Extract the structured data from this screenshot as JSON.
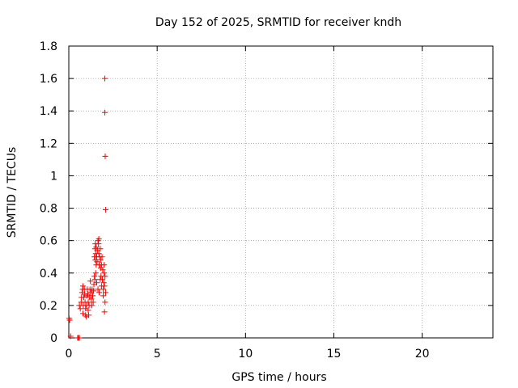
{
  "chart_data": {
    "type": "scatter",
    "title": "Day 152 of 2025, SRMTID for receiver kndh",
    "xlabel": "GPS time / hours",
    "ylabel": "SRMTID / TECUs",
    "xlim": [
      0,
      24
    ],
    "ylim": [
      0,
      1.8
    ],
    "x_ticks": [
      0,
      5,
      10,
      15,
      20
    ],
    "y_ticks": [
      0,
      0.2,
      0.4,
      0.6,
      0.8,
      1,
      1.2,
      1.4,
      1.6,
      1.8
    ],
    "x_tick_labels": [
      "0",
      "5",
      "10",
      "15",
      "20"
    ],
    "y_tick_labels": [
      "0",
      "0.2",
      "0.4",
      "0.6",
      "0.8",
      "1",
      "1.2",
      "1.4",
      "1.6",
      "1.8"
    ],
    "grid": true,
    "marker": "+",
    "color": "#ff0000",
    "series": [
      {
        "name": "SRMTID",
        "points": [
          [
            0.02,
            0.12
          ],
          [
            0.05,
            0.11
          ],
          [
            0.1,
            0.01
          ],
          [
            0.5,
            0.0
          ],
          [
            0.55,
            0.0
          ],
          [
            0.6,
            0.0
          ],
          [
            0.6,
            0.2
          ],
          [
            0.65,
            0.18
          ],
          [
            0.7,
            0.22
          ],
          [
            0.72,
            0.25
          ],
          [
            0.75,
            0.28
          ],
          [
            0.78,
            0.3
          ],
          [
            0.8,
            0.32
          ],
          [
            0.8,
            0.15
          ],
          [
            0.82,
            0.2
          ],
          [
            0.85,
            0.25
          ],
          [
            0.88,
            0.3
          ],
          [
            0.9,
            0.27
          ],
          [
            0.92,
            0.22
          ],
          [
            0.95,
            0.18
          ],
          [
            0.95,
            0.14
          ],
          [
            1.0,
            0.13
          ],
          [
            1.0,
            0.2
          ],
          [
            1.02,
            0.26
          ],
          [
            1.05,
            0.3
          ],
          [
            1.08,
            0.27
          ],
          [
            1.1,
            0.22
          ],
          [
            1.1,
            0.17
          ],
          [
            1.12,
            0.14
          ],
          [
            1.15,
            0.2
          ],
          [
            1.18,
            0.25
          ],
          [
            1.2,
            0.3
          ],
          [
            1.22,
            0.35
          ],
          [
            1.25,
            0.28
          ],
          [
            1.28,
            0.24
          ],
          [
            1.3,
            0.2
          ],
          [
            1.32,
            0.3
          ],
          [
            1.35,
            0.26
          ],
          [
            1.38,
            0.22
          ],
          [
            1.4,
            0.29
          ],
          [
            1.42,
            0.33
          ],
          [
            1.45,
            0.38
          ],
          [
            1.45,
            0.5
          ],
          [
            1.48,
            0.55
          ],
          [
            1.5,
            0.58
          ],
          [
            1.5,
            0.48
          ],
          [
            1.52,
            0.52
          ],
          [
            1.55,
            0.45
          ],
          [
            1.55,
            0.56
          ],
          [
            1.58,
            0.5
          ],
          [
            1.6,
            0.47
          ],
          [
            1.62,
            0.54
          ],
          [
            1.65,
            0.6
          ],
          [
            1.68,
            0.58
          ],
          [
            1.7,
            0.61
          ],
          [
            1.7,
            0.52
          ],
          [
            1.72,
            0.45
          ],
          [
            1.75,
            0.5
          ],
          [
            1.78,
            0.55
          ],
          [
            1.8,
            0.48
          ],
          [
            1.8,
            0.43
          ],
          [
            1.82,
            0.38
          ],
          [
            1.85,
            0.45
          ],
          [
            1.88,
            0.5
          ],
          [
            1.9,
            0.36
          ],
          [
            1.92,
            0.42
          ],
          [
            1.95,
            0.3
          ],
          [
            1.95,
            0.26
          ],
          [
            1.98,
            0.34
          ],
          [
            2.0,
            0.4
          ],
          [
            2.0,
            0.45
          ],
          [
            2.02,
            0.32
          ],
          [
            2.05,
            0.38
          ],
          [
            2.05,
            0.22
          ],
          [
            2.08,
            0.28
          ],
          [
            1.48,
            0.36
          ],
          [
            1.52,
            0.4
          ],
          [
            1.58,
            0.34
          ],
          [
            1.65,
            0.3
          ],
          [
            1.72,
            0.28
          ],
          [
            1.78,
            0.36
          ],
          [
            1.85,
            0.32
          ],
          [
            2.02,
            0.16
          ],
          [
            2.04,
            1.6
          ],
          [
            2.04,
            1.39
          ],
          [
            2.06,
            1.12
          ],
          [
            2.08,
            0.79
          ]
        ]
      }
    ]
  }
}
